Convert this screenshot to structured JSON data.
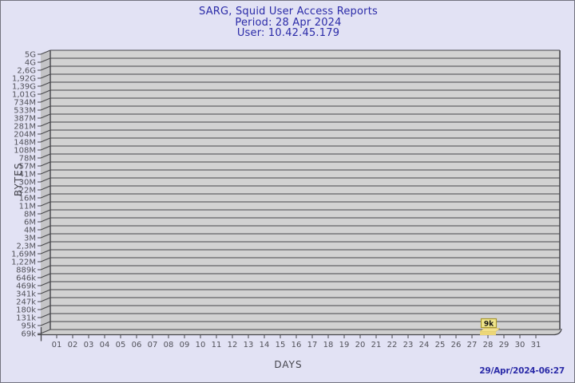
{
  "header": {
    "title": "SARG, Squid User Access Reports",
    "period": "Period: 28 Apr 2024",
    "user": "User: 10.42.45.179"
  },
  "footer": {
    "timestamp": "29/Apr/2024-06:27"
  },
  "chart_data": {
    "type": "bar",
    "title": "SARG, Squid User Access Reports",
    "subtitle": "Period: 28 Apr 2024 — User: 10.42.45.179",
    "xlabel": "DAYS",
    "ylabel": "BYTES",
    "y_scale": "quasi-logarithmic",
    "y_ticks": [
      "5G",
      "4G",
      "2,6G",
      "1,92G",
      "1,39G",
      "1,01G",
      "734M",
      "533M",
      "387M",
      "281M",
      "204M",
      "148M",
      "108M",
      "78M",
      "57M",
      "41M",
      "30M",
      "22M",
      "16M",
      "11M",
      "8M",
      "6M",
      "4M",
      "3M",
      "2,3M",
      "1,69M",
      "1,22M",
      "889k",
      "646k",
      "469k",
      "341k",
      "247k",
      "180k",
      "131k",
      "95k",
      "69k"
    ],
    "x_ticks": [
      "01",
      "02",
      "03",
      "04",
      "05",
      "06",
      "07",
      "08",
      "09",
      "10",
      "11",
      "12",
      "13",
      "14",
      "15",
      "16",
      "17",
      "18",
      "19",
      "20",
      "21",
      "22",
      "23",
      "24",
      "25",
      "26",
      "27",
      "28",
      "29",
      "30",
      "31"
    ],
    "points": [
      {
        "day": 28,
        "label": "9k",
        "value_bytes": 9000
      }
    ],
    "legend": null,
    "grid": true,
    "colors": {
      "background": "#e2e2f4",
      "title": "#2b2ba8",
      "plot_face": "#d2d2d2",
      "plot_wall": "#c4c4c6",
      "grid_line": "#47474b",
      "tick_text": "#52525a",
      "bar_fill": "#f2e08a",
      "bar_front": "#ecd678",
      "bar_stem": "#e6d068",
      "label_box_fill": "#f0e68c",
      "label_box_border": "#a89830",
      "label_text": "#111111"
    }
  }
}
